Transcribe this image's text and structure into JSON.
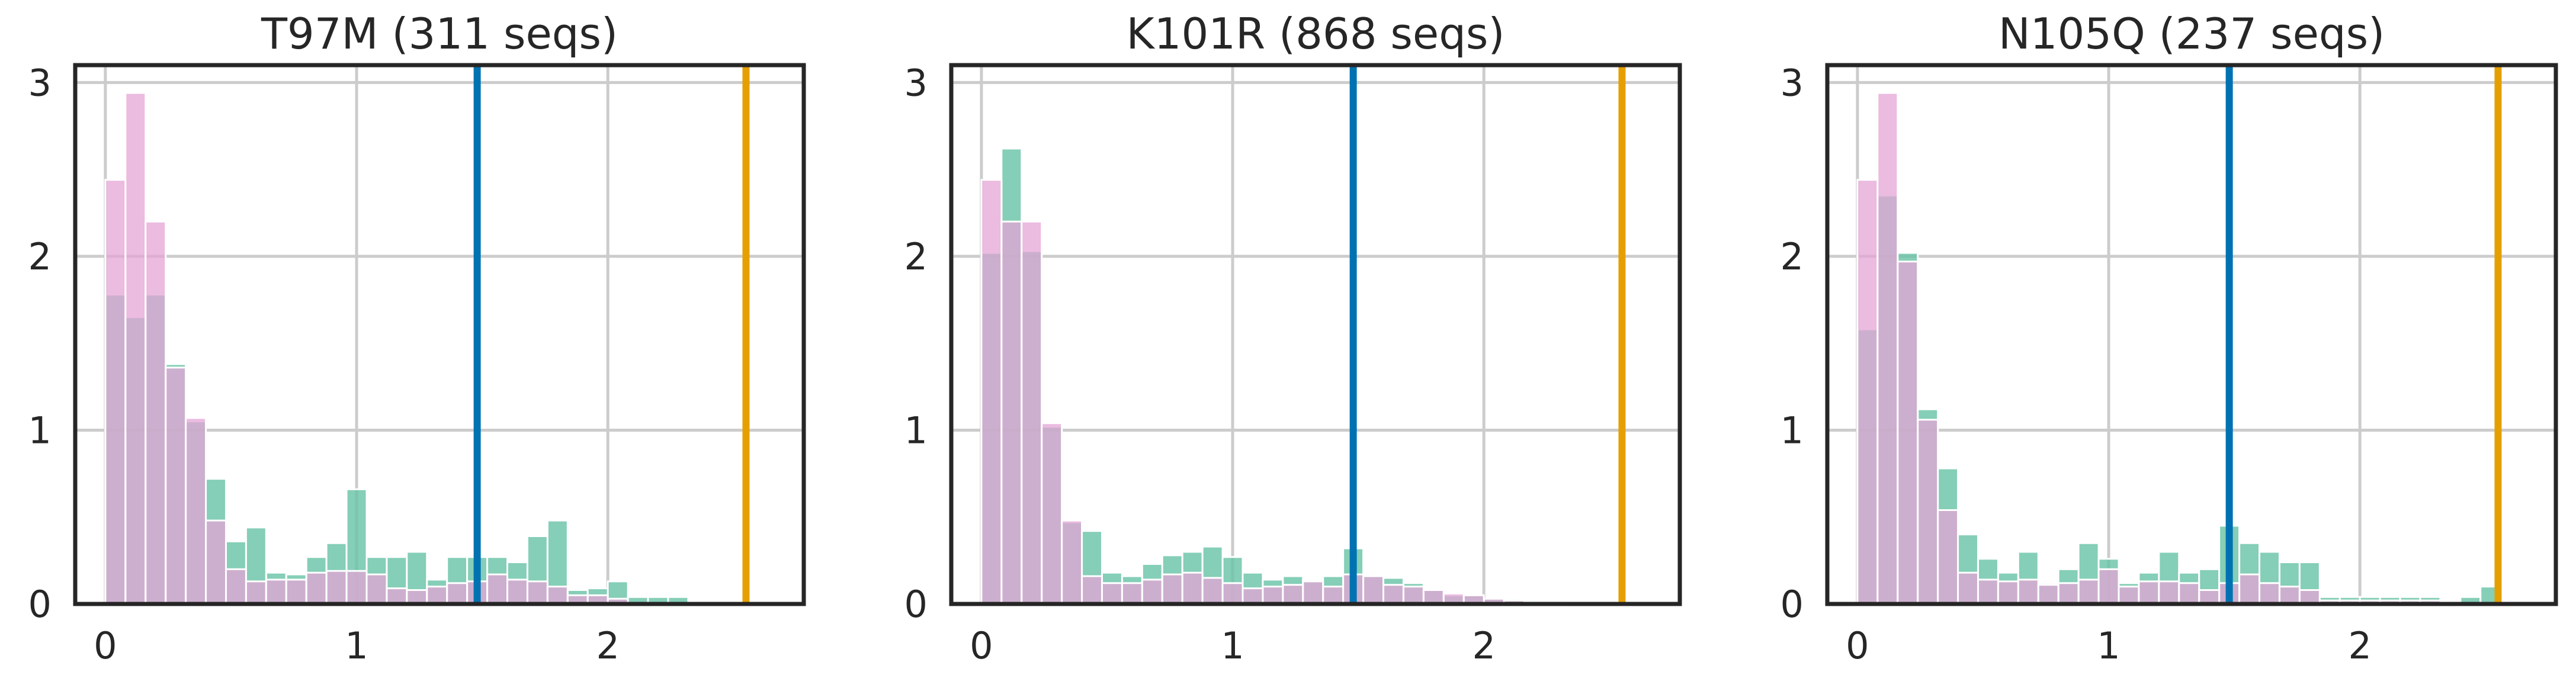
{
  "chart_data": [
    {
      "type": "bar",
      "title": "T97M (311 seqs)",
      "bin_width": 0.08,
      "x_ticks": [
        "0",
        "1",
        "2"
      ],
      "y_ticks": [
        "0",
        "1",
        "2",
        "3"
      ],
      "xlim": [
        -0.12,
        2.78
      ],
      "ylim": [
        0,
        3.1
      ],
      "grid": true,
      "series": [
        {
          "color": "#66c2a5",
          "values": [
            1.78,
            1.65,
            1.78,
            1.38,
            1.05,
            0.72,
            0.36,
            0.44,
            0.18,
            0.17,
            0.27,
            0.35,
            0.66,
            0.27,
            0.27,
            0.3,
            0.14,
            0.27,
            0.27,
            0.27,
            0.24,
            0.39,
            0.48,
            0.08,
            0.09,
            0.13,
            0.04,
            0.04,
            0.04,
            0,
            0,
            0,
            0,
            0
          ]
        },
        {
          "color": "#e4a4d6",
          "values": [
            2.44,
            2.94,
            2.2,
            1.36,
            1.07,
            0.48,
            0.2,
            0.13,
            0.14,
            0.14,
            0.18,
            0.19,
            0.19,
            0.17,
            0.09,
            0.08,
            0.1,
            0.12,
            0.13,
            0.17,
            0.14,
            0.13,
            0.1,
            0.05,
            0.05,
            0.03,
            0,
            0,
            0,
            0,
            0,
            0,
            0,
            0
          ]
        }
      ],
      "vlines": [
        {
          "x": 1.48,
          "color": "#0072b2"
        },
        {
          "x": 2.55,
          "color": "#e69f00"
        }
      ]
    },
    {
      "type": "bar",
      "title": "K101R (868 seqs)",
      "bin_width": 0.08,
      "x_ticks": [
        "0",
        "1",
        "2"
      ],
      "y_ticks": [
        "0",
        "1",
        "2",
        "3"
      ],
      "xlim": [
        -0.12,
        2.78
      ],
      "ylim": [
        0,
        3.1
      ],
      "grid": true,
      "series": [
        {
          "color": "#66c2a5",
          "values": [
            2.02,
            2.62,
            2.03,
            1.02,
            0.47,
            0.42,
            0.18,
            0.16,
            0.23,
            0.28,
            0.3,
            0.33,
            0.27,
            0.18,
            0.14,
            0.16,
            0.14,
            0.16,
            0.32,
            0.17,
            0.15,
            0.12,
            0.09,
            0.05,
            0.05,
            0.03,
            0.03,
            0.02,
            0.02,
            0.01,
            0.01,
            0,
            0,
            0
          ]
        },
        {
          "color": "#e4a4d6",
          "values": [
            2.44,
            2.2,
            2.2,
            1.04,
            0.48,
            0.16,
            0.12,
            0.12,
            0.14,
            0.17,
            0.18,
            0.15,
            0.12,
            0.09,
            0.1,
            0.11,
            0.13,
            0.1,
            0.17,
            0.16,
            0.11,
            0.1,
            0.08,
            0.06,
            0.05,
            0.03,
            0.02,
            0.01,
            0.01,
            0,
            0,
            0,
            0,
            0
          ]
        }
      ],
      "vlines": [
        {
          "x": 1.48,
          "color": "#0072b2"
        },
        {
          "x": 2.55,
          "color": "#e69f00"
        }
      ]
    },
    {
      "type": "bar",
      "title": "N105Q (237 seqs)",
      "bin_width": 0.08,
      "x_ticks": [
        "0",
        "1",
        "2"
      ],
      "y_ticks": [
        "0",
        "1",
        "2",
        "3"
      ],
      "xlim": [
        -0.12,
        2.78
      ],
      "ylim": [
        0,
        3.1
      ],
      "grid": true,
      "series": [
        {
          "color": "#66c2a5",
          "values": [
            1.58,
            2.35,
            2.02,
            1.12,
            0.78,
            0.4,
            0.26,
            0.18,
            0.3,
            0.12,
            0.2,
            0.35,
            0.26,
            0.12,
            0.18,
            0.3,
            0.18,
            0.2,
            0.45,
            0.35,
            0.3,
            0.24,
            0.24,
            0.04,
            0.04,
            0.04,
            0.04,
            0.04,
            0.04,
            0,
            0.04,
            0.1,
            0,
            0
          ]
        },
        {
          "color": "#e4a4d6",
          "values": [
            2.44,
            2.94,
            1.97,
            1.06,
            0.54,
            0.18,
            0.14,
            0.13,
            0.14,
            0.11,
            0.12,
            0.14,
            0.2,
            0.1,
            0.13,
            0.13,
            0.12,
            0.08,
            0.12,
            0.17,
            0.12,
            0.1,
            0.08,
            0.02,
            0.02,
            0.02,
            0.02,
            0.02,
            0.02,
            0,
            0,
            0,
            0,
            0
          ]
        }
      ],
      "vlines": [
        {
          "x": 1.48,
          "color": "#0072b2"
        },
        {
          "x": 2.55,
          "color": "#e69f00"
        }
      ]
    }
  ]
}
